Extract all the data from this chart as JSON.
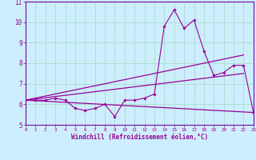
{
  "title": "",
  "xlabel": "Windchill (Refroidissement éolien,°C)",
  "background_color": "#cceeff",
  "grid_color": "#aaddcc",
  "line_color": "#990099",
  "spine_color": "#7700aa",
  "x_min": 0,
  "x_max": 23,
  "y_min": 5,
  "y_max": 11,
  "yticks": [
    5,
    6,
    7,
    8,
    9,
    10,
    11
  ],
  "series": [
    {
      "x": [
        0,
        1,
        2,
        3,
        4,
        5,
        6,
        7,
        8,
        9,
        10,
        11,
        12,
        13,
        14,
        15,
        16,
        17,
        18,
        19,
        20,
        21,
        22,
        23
      ],
      "y": [
        6.2,
        6.2,
        6.2,
        6.3,
        6.2,
        5.8,
        5.7,
        5.8,
        6.0,
        5.4,
        6.2,
        6.2,
        6.3,
        6.5,
        9.8,
        10.6,
        9.7,
        10.1,
        8.6,
        7.4,
        7.55,
        7.9,
        7.9,
        5.6
      ],
      "marker": "D",
      "markersize": 1.8,
      "linewidth": 0.8
    },
    {
      "x": [
        0,
        22
      ],
      "y": [
        6.2,
        8.4
      ],
      "marker": null,
      "linewidth": 0.9
    },
    {
      "x": [
        0,
        22
      ],
      "y": [
        6.2,
        7.5
      ],
      "marker": null,
      "linewidth": 0.9
    },
    {
      "x": [
        0,
        23
      ],
      "y": [
        6.2,
        5.6
      ],
      "marker": null,
      "linewidth": 0.9
    }
  ]
}
